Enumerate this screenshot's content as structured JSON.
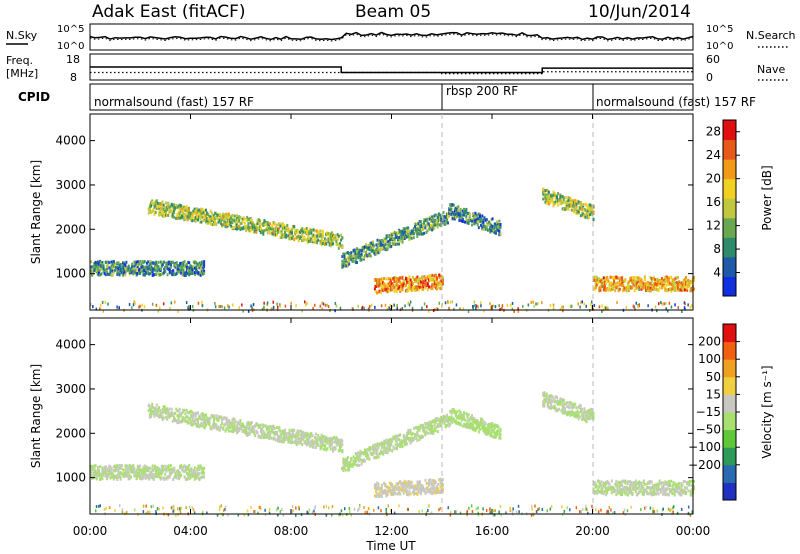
{
  "header": {
    "station": "Adak East (fitACF)",
    "beam": "Beam 05",
    "date": "10/Jun/2014"
  },
  "status_panels": {
    "nsky_label": "N.Sky",
    "nsearch_label": "N.Search",
    "noise_ticks": [
      "10^5",
      "10^0"
    ],
    "freq_label_lines": [
      "Freq.",
      "[MHz]"
    ],
    "freq_ticks": [
      "18",
      "8"
    ],
    "nave_label": "Nave",
    "nave_ticks": [
      "60",
      "0"
    ],
    "cpid_label": "CPID",
    "cpid_segments": [
      {
        "label": "normalsound (fast) 157 RF",
        "start_hour": 0,
        "end_hour": 14
      },
      {
        "label": "rbsp 200 RF",
        "start_hour": 14,
        "end_hour": 20
      },
      {
        "label": "normalsound (fast) 157 RF",
        "start_hour": 20,
        "end_hour": 24
      }
    ],
    "freq_steps": [
      {
        "start_hour": 0,
        "end_hour": 10,
        "freq_mhz": 13.0
      },
      {
        "start_hour": 10,
        "end_hour": 18,
        "freq_mhz": 10.5
      },
      {
        "start_hour": 18,
        "end_hour": 24,
        "freq_mhz": 12.5
      }
    ],
    "nave_steps": [
      {
        "start_hour": 0,
        "end_hour": 14,
        "nave": 15
      },
      {
        "start_hour": 14,
        "end_hour": 18,
        "nave": 12
      },
      {
        "start_hour": 18,
        "end_hour": 24,
        "nave": 17
      }
    ]
  },
  "chart_data": [
    {
      "type": "heatmap",
      "quantity": "power",
      "ylabel": "Slant Range [km]",
      "xlabel": "Time UT",
      "x_ticks": [
        "00:00",
        "04:00",
        "08:00",
        "12:00",
        "16:00",
        "20:00",
        "00:00"
      ],
      "y_ticks": [
        1000,
        2000,
        3000,
        4000
      ],
      "xlim_hours": [
        0,
        24
      ],
      "ylim_km": [
        180,
        4600
      ],
      "colorbar": {
        "label": "Power [dB]",
        "ticks": [
          4,
          8,
          12,
          16,
          20,
          24,
          28
        ],
        "range": [
          0,
          30
        ],
        "colors": [
          "#1030e0",
          "#1e5aa8",
          "#2e8a6a",
          "#6aa84f",
          "#c0c840",
          "#f0d020",
          "#f09a18",
          "#e85818",
          "#e01010"
        ]
      },
      "echo_regions": [
        {
          "start_hour": 2.3,
          "end_hour": 10.0,
          "range_km_start": 2550,
          "range_km_end": 1750,
          "power_db": 14
        },
        {
          "start_hour": 10.0,
          "end_hour": 14.3,
          "range_km_start": 1300,
          "range_km_end": 2350,
          "power_db": 10
        },
        {
          "start_hour": 14.3,
          "end_hour": 16.3,
          "range_km_start": 2450,
          "range_km_end": 2050,
          "power_db": 8
        },
        {
          "start_hour": 18.0,
          "end_hour": 20.0,
          "range_km_start": 2800,
          "range_km_end": 2400,
          "power_db": 14
        },
        {
          "start_hour": 11.3,
          "end_hour": 14.0,
          "range_km_start": 750,
          "range_km_end": 850,
          "power_db": 22
        },
        {
          "start_hour": 20.0,
          "end_hour": 24.0,
          "range_km_start": 800,
          "range_km_end": 800,
          "power_db": 20
        },
        {
          "start_hour": 0.0,
          "end_hour": 4.5,
          "range_km_start": 1150,
          "range_km_end": 1150,
          "power_db": 8
        }
      ]
    },
    {
      "type": "heatmap",
      "quantity": "velocity",
      "ylabel": "Slant Range [km]",
      "xlabel": "Time UT",
      "x_ticks": [
        "00:00",
        "04:00",
        "08:00",
        "12:00",
        "16:00",
        "20:00",
        "00:00"
      ],
      "y_ticks": [
        1000,
        2000,
        3000,
        4000
      ],
      "xlim_hours": [
        0,
        24
      ],
      "ylim_km": [
        180,
        4600
      ],
      "colorbar": {
        "label": "Velocity [m s⁻¹]",
        "ticks": [
          "200",
          "100",
          "50",
          "15",
          "−15",
          "−50",
          "−100",
          "−200"
        ],
        "range": [
          -250,
          250
        ],
        "colors": [
          "#2030c0",
          "#2a6ab0",
          "#2e9a58",
          "#60c838",
          "#a8e070",
          "#c8c8c0",
          "#f0d040",
          "#f0a020",
          "#f06010",
          "#e01010"
        ]
      },
      "echo_regions": [
        {
          "start_hour": 2.3,
          "end_hour": 10.0,
          "range_km_start": 2550,
          "range_km_end": 1750,
          "velocity": 0
        },
        {
          "start_hour": 10.0,
          "end_hour": 14.3,
          "range_km_start": 1300,
          "range_km_end": 2350,
          "velocity": -10
        },
        {
          "start_hour": 14.3,
          "end_hour": 16.3,
          "range_km_start": 2450,
          "range_km_end": 2050,
          "velocity": -20
        },
        {
          "start_hour": 18.0,
          "end_hour": 20.0,
          "range_km_start": 2800,
          "range_km_end": 2400,
          "velocity": 0
        },
        {
          "start_hour": 11.3,
          "end_hour": 14.0,
          "range_km_start": 750,
          "range_km_end": 850,
          "velocity": 30
        },
        {
          "start_hour": 20.0,
          "end_hour": 24.0,
          "range_km_start": 800,
          "range_km_end": 800,
          "velocity": 0
        },
        {
          "start_hour": 0.0,
          "end_hour": 4.5,
          "range_km_start": 1150,
          "range_km_end": 1150,
          "velocity": 0
        }
      ]
    }
  ]
}
